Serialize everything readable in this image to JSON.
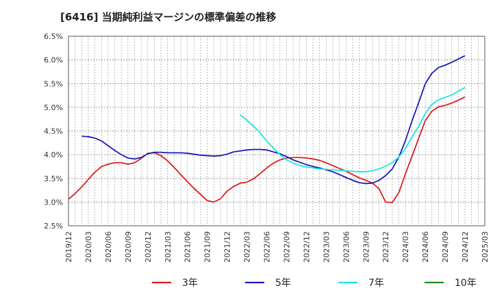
{
  "chart_data": {
    "type": "line",
    "title": "[6416]  当期純利益マージンの標準偏差の推移",
    "xlabel": "",
    "ylabel": "",
    "x_tick_labels": [
      "2019/12",
      "2020/03",
      "2020/06",
      "2020/09",
      "2020/12",
      "2021/03",
      "2021/06",
      "2021/09",
      "2021/12",
      "2022/03",
      "2022/06",
      "2022/09",
      "2022/12",
      "2023/03",
      "2023/06",
      "2023/09",
      "2023/12",
      "2024/03",
      "2024/06",
      "2024/09",
      "2024/12",
      "2025/03"
    ],
    "y_tick_labels": [
      "6.5%",
      "6.0%",
      "5.5%",
      "5.0%",
      "4.5%",
      "4.0%",
      "3.5%",
      "3.0%",
      "2.5%"
    ],
    "y_ticks": [
      6.5,
      6.0,
      5.5,
      5.0,
      4.5,
      4.0,
      3.5,
      3.0,
      2.5
    ],
    "ylim": [
      2.5,
      6.5
    ],
    "grid": true,
    "legend_position": "bottom",
    "series": [
      {
        "name": "3年",
        "color": "#dd1c1c",
        "values": [
          3.06,
          3.18,
          3.32,
          3.48,
          3.63,
          3.75,
          3.8,
          3.83,
          3.83,
          3.8,
          3.83,
          3.92,
          4.03,
          4.04,
          3.98,
          3.87,
          3.73,
          3.58,
          3.43,
          3.29,
          3.16,
          3.03,
          3.0,
          3.07,
          3.23,
          3.33,
          3.4,
          3.42,
          3.49,
          3.6,
          3.72,
          3.82,
          3.89,
          3.93,
          3.94,
          3.94,
          3.93,
          3.91,
          3.88,
          3.83,
          3.77,
          3.71,
          3.65,
          3.58,
          3.51,
          3.46,
          3.4,
          3.28,
          3.0,
          2.99,
          3.2,
          3.6,
          3.97,
          4.35,
          4.72,
          4.92,
          5.01,
          5.04,
          5.09,
          5.15,
          5.22
        ]
      },
      {
        "name": "5年",
        "color": "#1a1ab4",
        "values": [
          null,
          null,
          4.39,
          4.38,
          4.35,
          4.29,
          4.19,
          4.09,
          4.0,
          3.93,
          3.91,
          3.94,
          4.02,
          4.05,
          4.05,
          4.04,
          4.04,
          4.04,
          4.03,
          4.01,
          3.99,
          3.98,
          3.97,
          3.98,
          4.01,
          4.06,
          4.08,
          4.1,
          4.11,
          4.11,
          4.1,
          4.06,
          4.02,
          3.96,
          3.89,
          3.84,
          3.79,
          3.75,
          3.72,
          3.68,
          3.64,
          3.58,
          3.52,
          3.46,
          3.41,
          3.39,
          3.4,
          3.46,
          3.56,
          3.7,
          3.95,
          4.3,
          4.72,
          5.1,
          5.5,
          5.72,
          5.84,
          5.89,
          5.95,
          6.02,
          6.09
        ]
      },
      {
        "name": "7年",
        "color": "#19e6e6",
        "values": [
          null,
          null,
          null,
          null,
          null,
          null,
          null,
          null,
          null,
          null,
          null,
          null,
          null,
          null,
          null,
          null,
          null,
          null,
          null,
          null,
          null,
          null,
          null,
          null,
          null,
          null,
          4.84,
          4.73,
          4.6,
          4.46,
          4.29,
          4.14,
          4.0,
          3.89,
          3.82,
          3.77,
          3.74,
          3.72,
          3.7,
          3.69,
          3.68,
          3.67,
          3.66,
          3.65,
          3.64,
          3.64,
          3.66,
          3.7,
          3.76,
          3.83,
          3.95,
          4.13,
          4.38,
          4.6,
          4.87,
          5.06,
          5.16,
          5.21,
          5.26,
          5.34,
          5.42
        ]
      },
      {
        "name": "10年",
        "color": "#1e8c1e",
        "values": []
      }
    ]
  }
}
